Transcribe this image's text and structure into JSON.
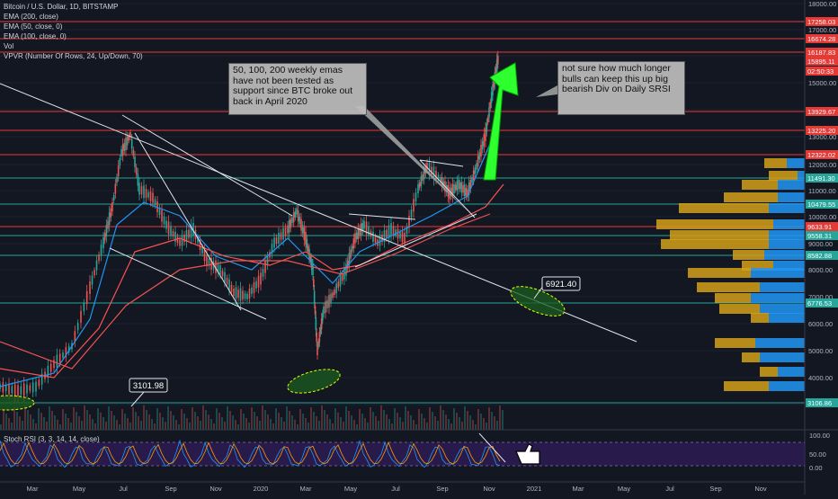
{
  "legend": {
    "title": "Bitcoin / U.S. Dollar, 1D, BITSTAMP",
    "ema200": "EMA (200, close)",
    "ema50": "EMA (50, close, 0)",
    "ema100": "EMA (100, close, 0)",
    "vol": "Vol",
    "vpvr": "VPVR (Number Of Rows, 24, Up/Down, 70)",
    "stoch": "Stoch RSI (3, 3, 14, 14, close)"
  },
  "notes": {
    "left": "50, 100, 200 weekly emas have not been tested as support since BTC broke out back in April 2020",
    "right": "not sure how much longer bulls can keep this up big bearish Div on Daily SRSI"
  },
  "callouts": [
    "6921.40",
    "3101.98"
  ],
  "price_axis_ticks": [
    "18000.00",
    "17000.00",
    "16000.00",
    "15000.00",
    "14000.00",
    "13000.00",
    "12000.00",
    "11000.00",
    "10000.00",
    "9000.00",
    "8000.00",
    "7000.00",
    "6000.00",
    "5000.00",
    "4000.00",
    "3000.00"
  ],
  "price_badges": [
    {
      "label": "17258.03",
      "color": "#e53935"
    },
    {
      "label": "16674.28",
      "color": "#e53935"
    },
    {
      "label": "16187.83",
      "color": "#e53935"
    },
    {
      "label": "15895.11",
      "color": "#e53935"
    },
    {
      "label": "02:50:33",
      "color": "#e53935"
    },
    {
      "label": "13929.67",
      "color": "#e53935"
    },
    {
      "label": "13225.20",
      "color": "#e53935"
    },
    {
      "label": "12322.02",
      "color": "#e53935"
    },
    {
      "label": "11491.30",
      "color": "#26a69a"
    },
    {
      "label": "10479.55",
      "color": "#26a69a"
    },
    {
      "label": "9633.91",
      "color": "#e53935"
    },
    {
      "label": "9558.31",
      "color": "#26a69a"
    },
    {
      "label": "8582.88",
      "color": "#26a69a"
    },
    {
      "label": "6776.53",
      "color": "#26a69a"
    },
    {
      "label": "3106.86",
      "color": "#26a69a"
    }
  ],
  "stoch_ticks": [
    "100.00",
    "50.00",
    "0.00"
  ],
  "time_axis": [
    "Mar",
    "May",
    "Jul",
    "Sep",
    "Nov",
    "2020",
    "Mar",
    "May",
    "Jul",
    "Sep",
    "Nov",
    "2021",
    "Mar",
    "May",
    "Jul",
    "Sep",
    "Nov"
  ]
}
